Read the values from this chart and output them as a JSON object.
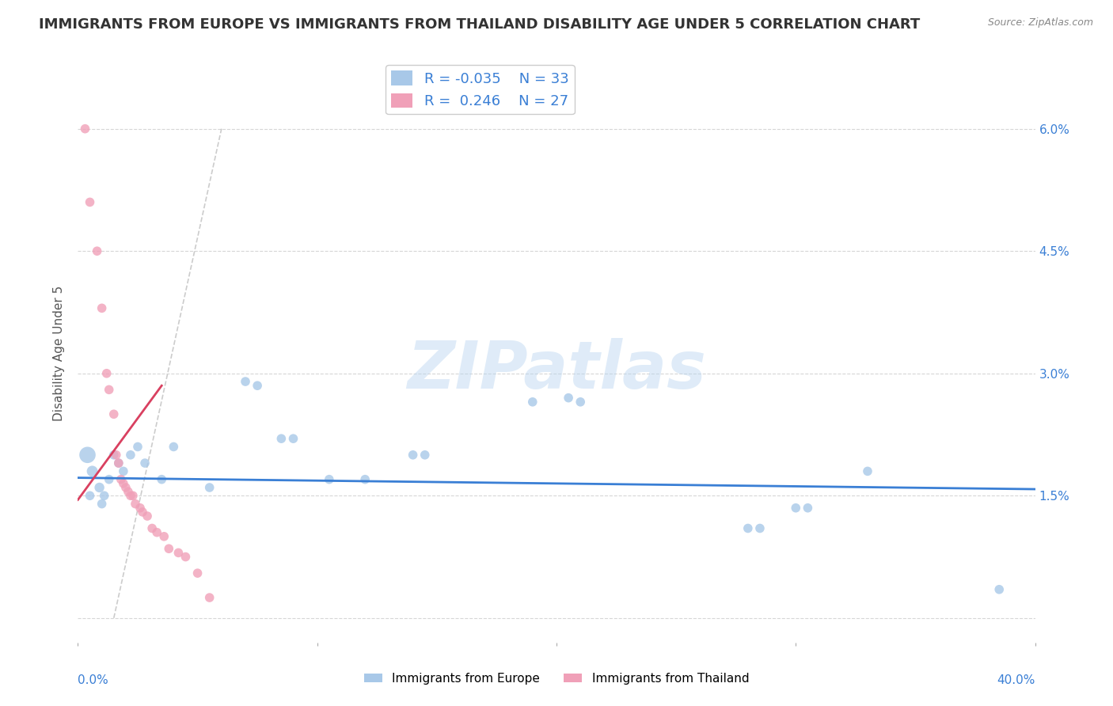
{
  "title": "IMMIGRANTS FROM EUROPE VS IMMIGRANTS FROM THAILAND DISABILITY AGE UNDER 5 CORRELATION CHART",
  "source": "Source: ZipAtlas.com",
  "ylabel": "Disability Age Under 5",
  "legend_label_blue": "Immigrants from Europe",
  "legend_label_pink": "Immigrants from Thailand",
  "R_blue": -0.035,
  "N_blue": 33,
  "R_pink": 0.246,
  "N_pink": 27,
  "xlim": [
    0.0,
    40.0
  ],
  "ylim": [
    -0.3,
    6.8
  ],
  "yticks": [
    0.0,
    1.5,
    3.0,
    4.5,
    6.0
  ],
  "ytick_labels": [
    "",
    "1.5%",
    "3.0%",
    "4.5%",
    "6.0%"
  ],
  "color_blue": "#a8c8e8",
  "color_pink": "#f0a0b8",
  "color_blue_line": "#3a7fd5",
  "color_pink_line": "#d94060",
  "background_color": "#ffffff",
  "grid_color": "#cccccc",
  "blue_scatter": [
    [
      0.4,
      2.0
    ],
    [
      0.6,
      1.8
    ],
    [
      0.9,
      1.6
    ],
    [
      1.1,
      1.5
    ],
    [
      1.3,
      1.7
    ],
    [
      1.5,
      2.0
    ],
    [
      1.7,
      1.9
    ],
    [
      1.9,
      1.8
    ],
    [
      2.2,
      2.0
    ],
    [
      2.5,
      2.1
    ],
    [
      2.8,
      1.9
    ],
    [
      3.5,
      1.7
    ],
    [
      4.0,
      2.1
    ],
    [
      5.5,
      1.6
    ],
    [
      7.0,
      2.9
    ],
    [
      7.5,
      2.85
    ],
    [
      8.5,
      2.2
    ],
    [
      9.0,
      2.2
    ],
    [
      10.5,
      1.7
    ],
    [
      12.0,
      1.7
    ],
    [
      14.0,
      2.0
    ],
    [
      14.5,
      2.0
    ],
    [
      19.0,
      2.65
    ],
    [
      20.5,
      2.7
    ],
    [
      21.0,
      2.65
    ],
    [
      28.0,
      1.1
    ],
    [
      28.5,
      1.1
    ],
    [
      30.0,
      1.35
    ],
    [
      30.5,
      1.35
    ],
    [
      33.0,
      1.8
    ],
    [
      38.5,
      0.35
    ],
    [
      0.5,
      1.5
    ],
    [
      1.0,
      1.4
    ]
  ],
  "pink_scatter": [
    [
      0.3,
      6.0
    ],
    [
      0.5,
      5.1
    ],
    [
      0.8,
      4.5
    ],
    [
      1.0,
      3.8
    ],
    [
      1.2,
      3.0
    ],
    [
      1.3,
      2.8
    ],
    [
      1.5,
      2.5
    ],
    [
      1.6,
      2.0
    ],
    [
      1.7,
      1.9
    ],
    [
      1.8,
      1.7
    ],
    [
      1.9,
      1.65
    ],
    [
      2.0,
      1.6
    ],
    [
      2.1,
      1.55
    ],
    [
      2.2,
      1.5
    ],
    [
      2.3,
      1.5
    ],
    [
      2.4,
      1.4
    ],
    [
      2.6,
      1.35
    ],
    [
      2.7,
      1.3
    ],
    [
      2.9,
      1.25
    ],
    [
      3.1,
      1.1
    ],
    [
      3.3,
      1.05
    ],
    [
      3.6,
      1.0
    ],
    [
      3.8,
      0.85
    ],
    [
      4.2,
      0.8
    ],
    [
      4.5,
      0.75
    ],
    [
      5.0,
      0.55
    ],
    [
      5.5,
      0.25
    ]
  ],
  "blue_line": {
    "x0": 0.0,
    "x1": 40.0,
    "y0": 1.72,
    "y1": 1.58
  },
  "pink_line": {
    "x0": 0.0,
    "x1": 3.5,
    "y0": 1.45,
    "y1": 2.85
  },
  "dash_line": {
    "x0": 1.5,
    "x1": 6.0,
    "y0": 0.0,
    "y1": 6.0
  },
  "watermark_text": "ZIPatlas",
  "title_fontsize": 13,
  "axis_fontsize": 11,
  "legend_fontsize": 13,
  "tick_fontsize": 11
}
